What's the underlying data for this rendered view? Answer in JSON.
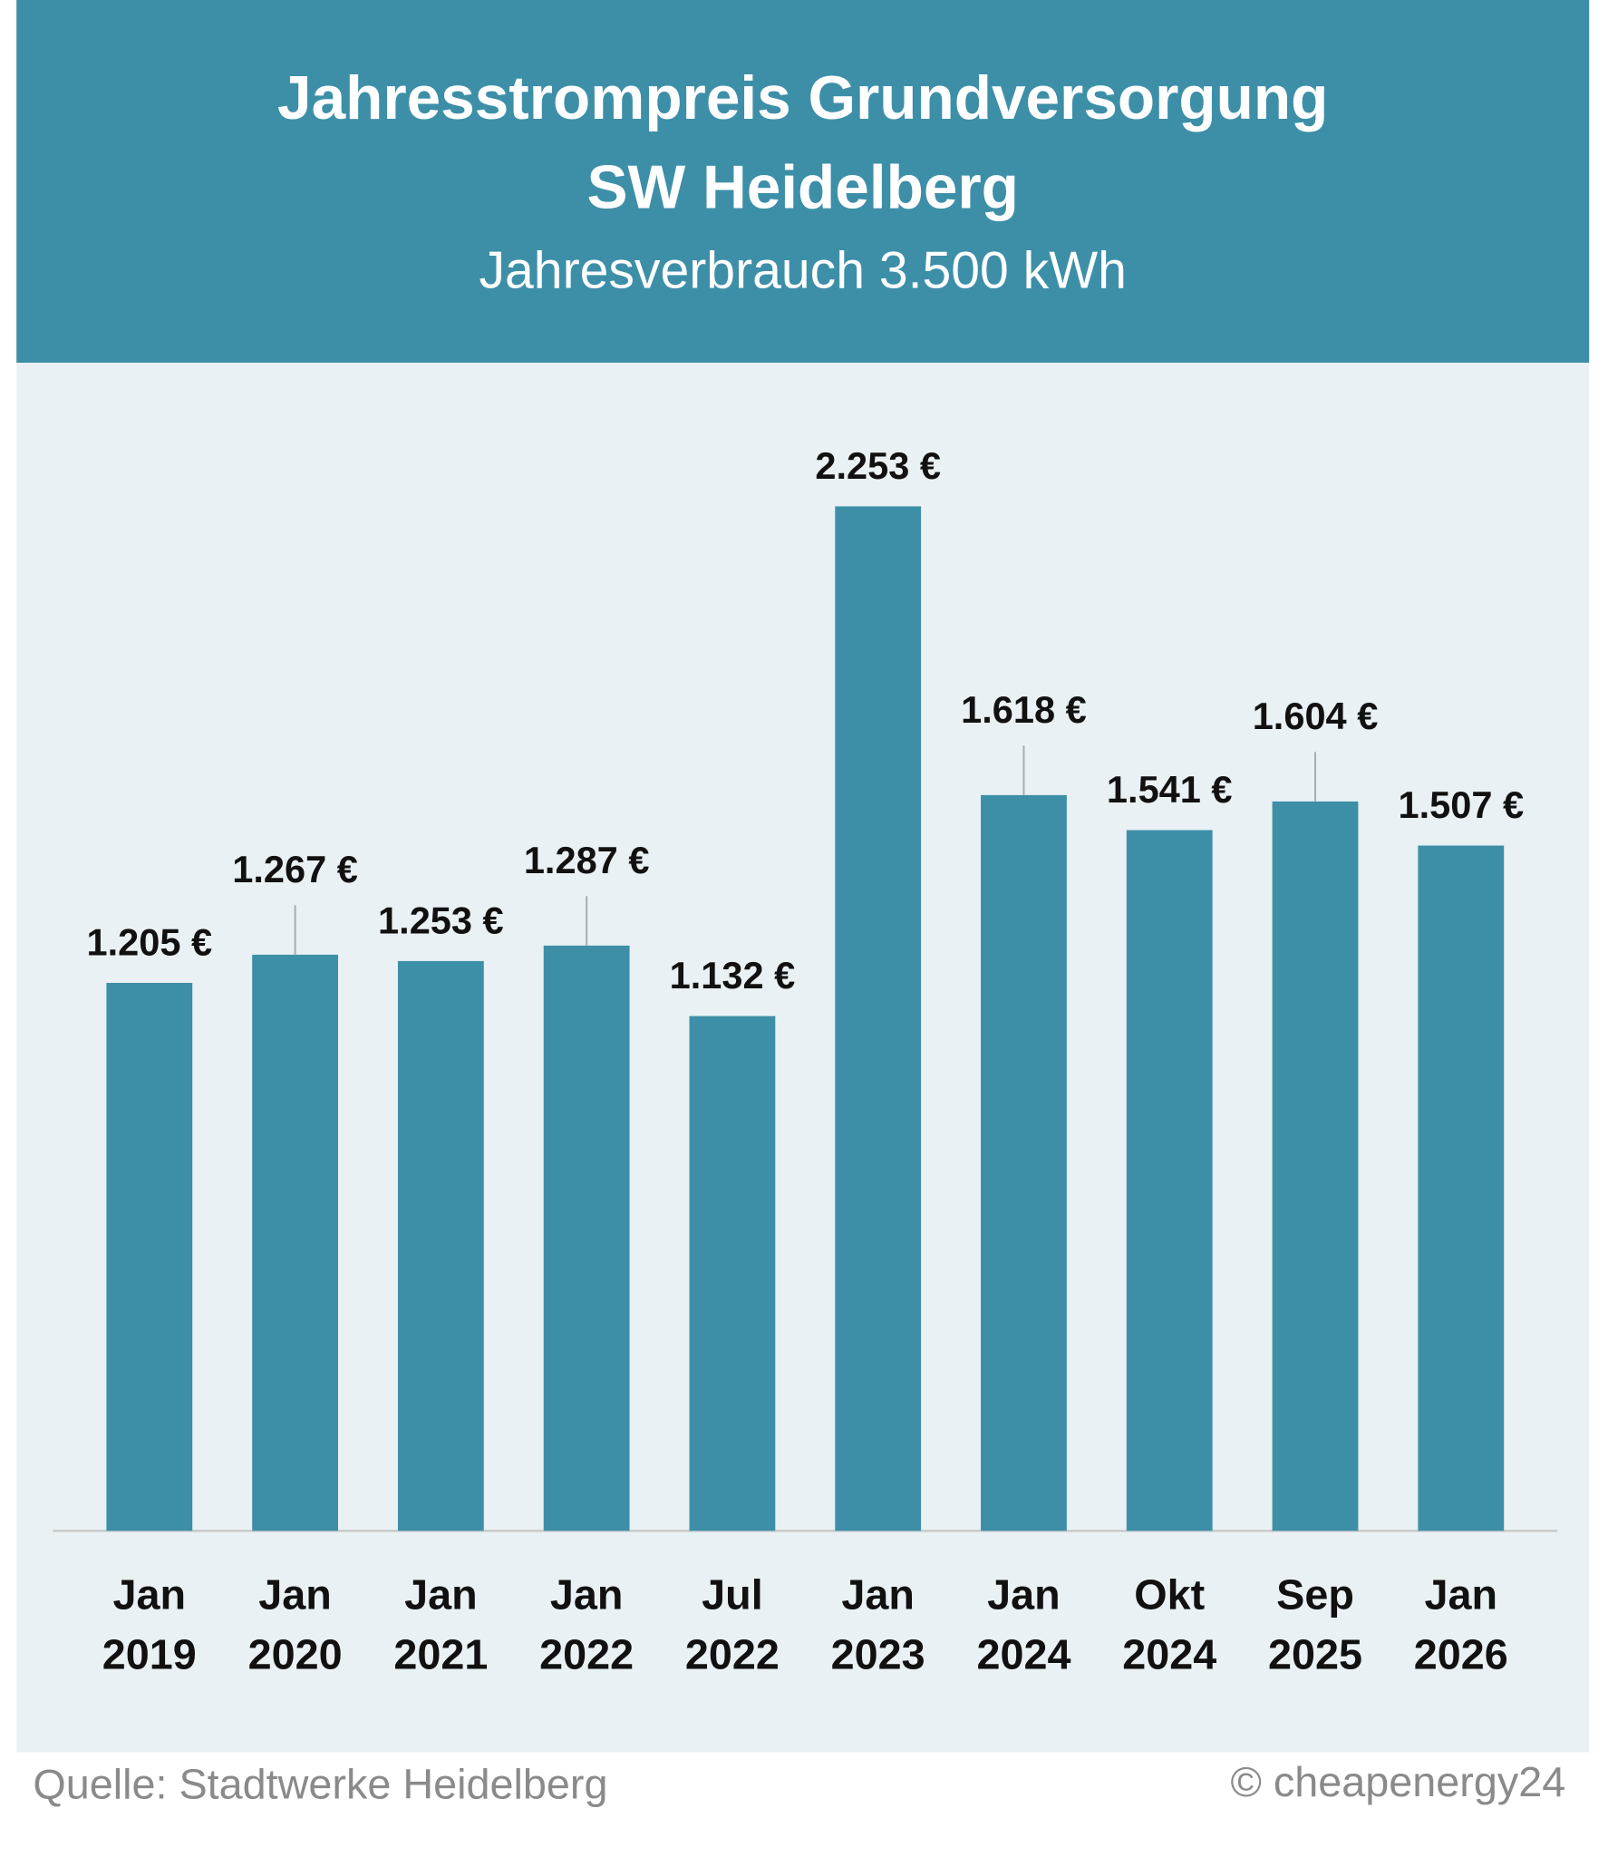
{
  "chart_data": {
    "type": "bar",
    "title": "Jahresstrompreis Grundversorgung",
    "title_line2": "SW Heidelberg",
    "subtitle": "Jahresverbrauch 3.500 kWh",
    "categories": [
      "Jan 2019",
      "Jan 2020",
      "Jan 2021",
      "Jan 2022",
      "Jul 2022",
      "Jan 2023",
      "Jan 2024",
      "Okt 2024",
      "Sep 2025",
      "Jan 2026"
    ],
    "values": [
      1205,
      1267,
      1253,
      1287,
      1132,
      2253,
      1618,
      1541,
      1604,
      1507
    ],
    "value_labels": [
      "1.205 €",
      "1.267 €",
      "1.253 €",
      "1.287 €",
      "1.132 €",
      "2.253 €",
      "1.618 €",
      "1.541 €",
      "1.604 €",
      "1.507 €"
    ],
    "color": "#3d8fa8",
    "source": "Quelle: Stadtwerke Heidelberg",
    "credit": "© cheapenergy24"
  }
}
